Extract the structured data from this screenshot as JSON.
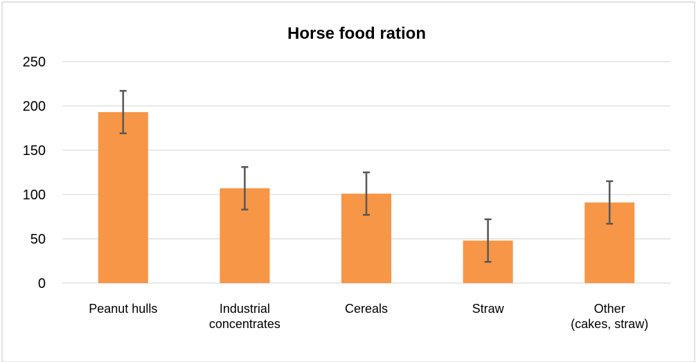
{
  "chart_data": {
    "type": "bar",
    "title": "Horse food ration",
    "xlabel": "",
    "ylabel": "",
    "categories": [
      [
        "Peanut hulls"
      ],
      [
        "Industrial",
        "concentrates"
      ],
      [
        "Cereals"
      ],
      [
        "Straw"
      ],
      [
        "Other",
        "(cakes, straw)"
      ]
    ],
    "values": [
      193,
      107,
      101,
      48,
      91
    ],
    "error_bars": [
      {
        "low": 169,
        "high": 217
      },
      {
        "low": 83,
        "high": 131
      },
      {
        "low": 77,
        "high": 125
      },
      {
        "low": 24,
        "high": 72
      },
      {
        "low": 67,
        "high": 115
      }
    ],
    "ylim": [
      0,
      250
    ],
    "yticks": [
      0,
      50,
      100,
      150,
      200,
      250
    ],
    "grid": true,
    "legend": "none",
    "colors": {
      "bar": "#F79646",
      "grid": "#D9D9D9",
      "error_bar": "#595959",
      "border": "#D9D9D9"
    }
  }
}
